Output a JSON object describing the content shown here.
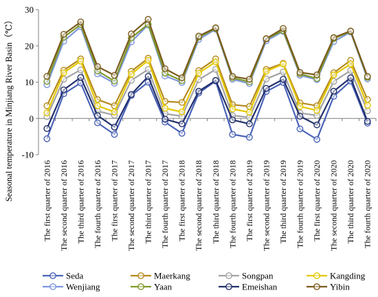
{
  "chart_data": {
    "type": "line",
    "title": "",
    "xlabel": "",
    "ylabel": "Seasonal temperature in Minjiang River Basin（℃）",
    "ylim": [
      -10,
      30
    ],
    "yticks": [
      "-10",
      "0",
      "10",
      "20",
      "30"
    ],
    "grid": false,
    "legend_position": "bottom",
    "categories": [
      "The first quarter of 2016",
      "The second quarter of 2016",
      "The third quarter of 2016",
      "The fourth quarter of 2016",
      "The first quarter of 2017",
      "The second quarter of 2017",
      "The third quarter of 2017",
      "The fourth quarter of 2017",
      "The first quarter of 2018",
      "The second quarter of 2018",
      "The third quarter of 2018",
      "The fourth quarter of 2018",
      "The first quarter of 2019",
      "The second quarter of 2019",
      "The third quarter of 2019",
      "The fourth quarter of 2019",
      "The first quarter of 2020",
      "The second quarter of 2020",
      "The third quarter of 2020",
      "The fourth quarter of 2020"
    ],
    "series": [
      {
        "name": "Seda",
        "color": "#4a63b8",
        "values": [
          -5.6,
          6.8,
          9.8,
          -1.2,
          -4.4,
          6.3,
          10.0,
          -1.0,
          -4.1,
          7.0,
          10.3,
          -4.4,
          -5.2,
          7.4,
          9.9,
          -2.9,
          -5.8,
          6.1,
          10.3,
          -1.3
        ]
      },
      {
        "name": "Maerkang",
        "color": "#b58a1e",
        "values": [
          3.5,
          13.3,
          16.4,
          5.2,
          3.5,
          13.0,
          16.6,
          4.7,
          4.4,
          13.2,
          16.4,
          3.8,
          3.3,
          13.5,
          15.2,
          4.3,
          3.5,
          12.6,
          16.0,
          5.2
        ]
      },
      {
        "name": "Songpan",
        "color": "#a3a3a3",
        "values": [
          0.5,
          10.8,
          13.4,
          2.0,
          0.9,
          10.5,
          13.5,
          1.3,
          0.6,
          10.7,
          13.5,
          0.8,
          0.3,
          10.9,
          12.8,
          1.5,
          0.8,
          10.2,
          13.2,
          2.1
        ]
      },
      {
        "name": "Kangding",
        "color": "#e3c800",
        "values": [
          1.5,
          12.6,
          15.8,
          3.5,
          1.8,
          12.2,
          16.0,
          2.8,
          1.8,
          12.5,
          15.6,
          2.6,
          1.7,
          13.0,
          15.0,
          3.3,
          2.2,
          12.0,
          15.0,
          3.6
        ]
      },
      {
        "name": "Wenjiang",
        "color": "#7d96dd",
        "values": [
          9.3,
          21.3,
          25.3,
          12.3,
          9.7,
          21.1,
          25.8,
          11.7,
          9.9,
          21.8,
          24.6,
          10.8,
          9.6,
          21.4,
          24.0,
          11.9,
          10.7,
          21.2,
          23.8,
          10.9
        ]
      },
      {
        "name": "Yaan",
        "color": "#7f9a2a",
        "values": [
          10.2,
          22.4,
          25.9,
          13.1,
          10.3,
          22.2,
          26.0,
          12.5,
          10.4,
          22.4,
          24.8,
          11.2,
          10.1,
          21.9,
          24.2,
          12.3,
          11.0,
          22.0,
          24.0,
          11.3
        ]
      },
      {
        "name": "Emeishan",
        "color": "#22306b",
        "values": [
          -2.8,
          7.9,
          11.3,
          0.8,
          -2.4,
          6.6,
          11.6,
          -0.2,
          -1.5,
          7.5,
          10.5,
          -0.4,
          -1.5,
          8.3,
          10.8,
          0.6,
          -1.8,
          7.5,
          11.2,
          -0.8
        ]
      },
      {
        "name": "Yibin",
        "color": "#7a5a1c",
        "values": [
          11.6,
          23.2,
          26.6,
          14.3,
          11.9,
          23.3,
          27.3,
          13.7,
          11.2,
          22.7,
          25.0,
          11.6,
          10.8,
          22.0,
          24.8,
          12.7,
          12.0,
          22.3,
          24.1,
          11.6
        ]
      }
    ]
  }
}
